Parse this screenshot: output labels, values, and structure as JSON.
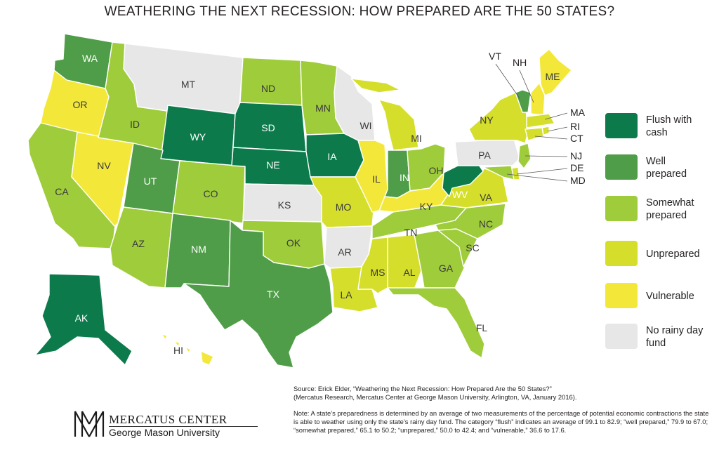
{
  "title": "WEATHERING THE NEXT RECESSION: HOW PREPARED ARE THE 50 STATES?",
  "categories": {
    "flush": {
      "label": "Flush with cash",
      "color": "#0c7a4b"
    },
    "well": {
      "label": "Well prepared",
      "color": "#4f9d48"
    },
    "somewhat": {
      "label": "Somewhat prepared",
      "color": "#9fcc3b"
    },
    "unprepared": {
      "label": "Unprepared",
      "color": "#d5df2b"
    },
    "vulnerable": {
      "label": "Vulnerable",
      "color": "#f3e83a"
    },
    "none": {
      "label": "No rainy day fund",
      "color": "#e7e7e8"
    }
  },
  "legend": [
    {
      "key": "flush",
      "label_line1": "Flush with",
      "label_line2": "cash"
    },
    {
      "key": "well",
      "label_line1": "Well",
      "label_line2": "prepared"
    },
    {
      "key": "somewhat",
      "label_line1": "Somewhat",
      "label_line2": "prepared"
    },
    {
      "key": "unprepared",
      "label_line1": "Unprepared",
      "label_line2": ""
    },
    {
      "key": "vulnerable",
      "label_line1": "Vulnerable",
      "label_line2": ""
    },
    {
      "key": "none",
      "label_line1": "No rainy day",
      "label_line2": "fund"
    }
  ],
  "states": {
    "WA": "well",
    "OR": "vulnerable",
    "CA": "somewhat",
    "NV": "vulnerable",
    "ID": "somewhat",
    "MT": "none",
    "WY": "flush",
    "UT": "well",
    "AZ": "somewhat",
    "CO": "somewhat",
    "NM": "well",
    "ND": "somewhat",
    "SD": "flush",
    "NE": "flush",
    "KS": "none",
    "OK": "somewhat",
    "TX": "well",
    "MN": "somewhat",
    "IA": "flush",
    "MO": "unprepared",
    "AR": "none",
    "LA": "unprepared",
    "WI": "none",
    "IL": "vulnerable",
    "MI": "unprepared",
    "IN": "well",
    "OH": "somewhat",
    "KY": "vulnerable",
    "TN": "somewhat",
    "MS": "unprepared",
    "AL": "unprepared",
    "GA": "somewhat",
    "FL": "somewhat",
    "SC": "somewhat",
    "NC": "somewhat",
    "VA": "unprepared",
    "WV": "flush",
    "PA": "none",
    "NY": "unprepared",
    "ME": "vulnerable",
    "VT": "well",
    "NH": "vulnerable",
    "MA": "unprepared",
    "RI": "unprepared",
    "CT": "unprepared",
    "NJ": "somewhat",
    "DE": "unprepared",
    "MD": "somewhat",
    "AK": "flush",
    "HI": "vulnerable"
  },
  "state_labels": [
    "WA",
    "OR",
    "CA",
    "NV",
    "ID",
    "MT",
    "WY",
    "UT",
    "AZ",
    "CO",
    "NM",
    "ND",
    "SD",
    "NE",
    "KS",
    "OK",
    "TX",
    "MN",
    "IA",
    "MO",
    "AR",
    "LA",
    "WI",
    "IL",
    "MI",
    "IN",
    "OH",
    "KY",
    "TN",
    "MS",
    "AL",
    "GA",
    "FL",
    "SC",
    "NC",
    "VA",
    "WV",
    "PA",
    "NY",
    "ME",
    "AK",
    "HI"
  ],
  "callout_labels": [
    "VT",
    "NH",
    "MA",
    "RI",
    "CT",
    "NJ",
    "DE",
    "MD"
  ],
  "source_line1": "Source: Erick Elder, “Weathering the Next Recession: How Prepared Are the 50 States?”",
  "source_line2": "(Mercatus Research, Mercatus Center at George Mason University, Arlington, VA, January 2016).",
  "note": "Note: A state’s preparedness is determined by an average of two measurements of the percentage of potential economic contractions the state is able to weather using only the state’s rainy day fund. The category “flush” indicates an average of 99.1 to 82.9; “well prepared,” 79.9 to 67.0; “somewhat prepared,” 65.1 to 50.2; “unprepared,” 50.0 to 42.4; and “vulnerable,” 36.6 to 17.6.",
  "logo": {
    "name": "MERCATUS CENTER",
    "sub": "George Mason University"
  }
}
